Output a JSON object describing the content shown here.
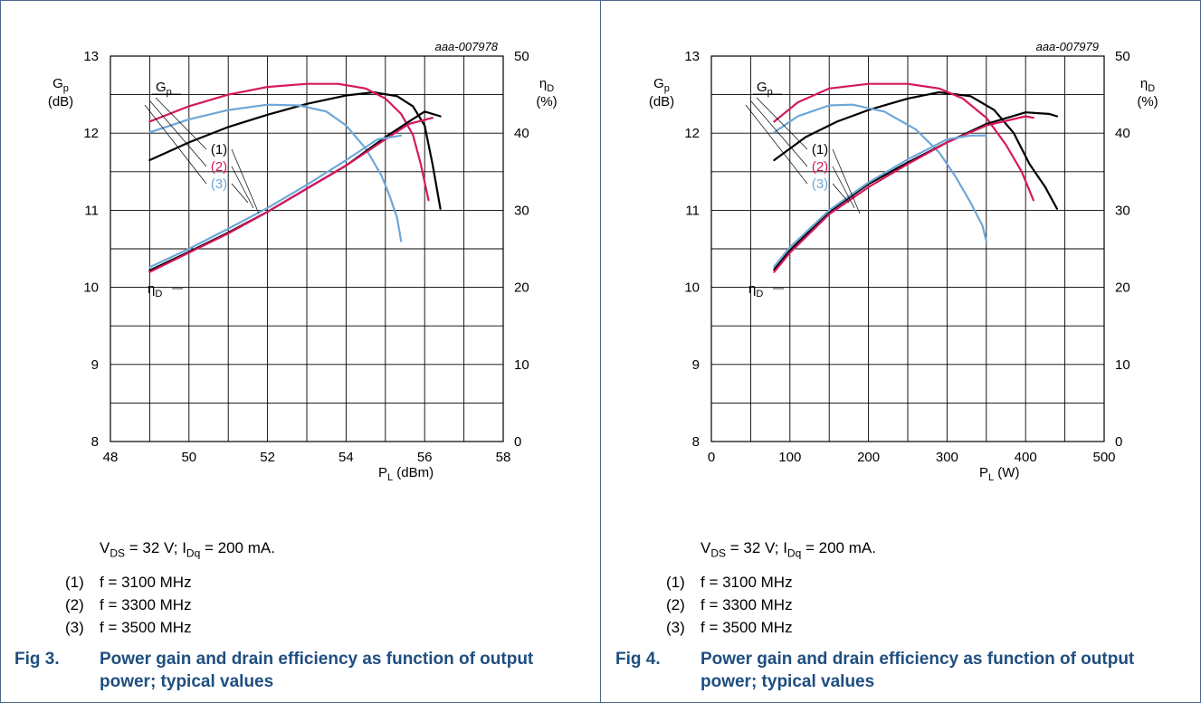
{
  "charts": [
    {
      "id": "aaa-007978",
      "condition": {
        "v_sym": "V",
        "v_sub": "DS",
        "v_val": " = 32 V; ",
        "i_sym": "I",
        "i_sub": "Dq",
        "i_val": " = 200 mA."
      },
      "legend": [
        {
          "num": "(1)",
          "label": "f = 3100 MHz"
        },
        {
          "num": "(2)",
          "label": "f = 3300 MHz"
        },
        {
          "num": "(3)",
          "label": "f = 3500 MHz"
        }
      ],
      "caption": {
        "fig": "Fig 3.",
        "title": "Power gain and drain efficiency as function of output power; typical values"
      }
    },
    {
      "id": "aaa-007979",
      "condition": {
        "v_sym": "V",
        "v_sub": "DS",
        "v_val": " = 32 V; ",
        "i_sym": "I",
        "i_sub": "Dq",
        "i_val": " = 200 mA."
      },
      "legend": [
        {
          "num": "(1)",
          "label": "f = 3100 MHz"
        },
        {
          "num": "(2)",
          "label": "f = 3300 MHz"
        },
        {
          "num": "(3)",
          "label": "f = 3500 MHz"
        }
      ],
      "caption": {
        "fig": "Fig 4.",
        "title": "Power gain and drain efficiency as function of output power; typical values"
      }
    }
  ],
  "colors": {
    "f3100": "#000000",
    "f3300": "#d6175f",
    "f3500": "#6ea7d8",
    "caption": "#1f4e80"
  },
  "chart_data": [
    {
      "type": "line",
      "id_label": "aaa-007978",
      "xlabel_main": "P",
      "xlabel_sub": "L",
      "xlabel_unit": " (dBm)",
      "ylabel_left_main": "G",
      "ylabel_left_sub": "p",
      "ylabel_left_unit": "(dB)",
      "ylabel_right_main": "η",
      "ylabel_right_sub": "D",
      "ylabel_right_unit": "(%)",
      "xlim": [
        48,
        58
      ],
      "ylim_left": [
        8,
        13
      ],
      "ylim_right": [
        0,
        50
      ],
      "xticks": [
        48,
        50,
        52,
        54,
        56,
        58
      ],
      "yticks_left": [
        8,
        9,
        10,
        11,
        12,
        13
      ],
      "yticks_right": [
        0,
        10,
        20,
        30,
        40,
        50
      ],
      "grid": true,
      "curve_labels": {
        "gp": "Gp",
        "eta": "ηD",
        "c1": "(1)",
        "c2": "(2)",
        "c3": "(3)"
      },
      "series": [
        {
          "name": "(1)",
          "quantity": "Gp",
          "axis": "left",
          "color": "#000000",
          "x": [
            49,
            50,
            51,
            52,
            53,
            54,
            54.7,
            55.3,
            55.7,
            56.0,
            56.2,
            56.4
          ],
          "y": [
            11.65,
            11.88,
            12.08,
            12.24,
            12.38,
            12.49,
            12.53,
            12.48,
            12.35,
            12.1,
            11.6,
            11.02
          ]
        },
        {
          "name": "(2)",
          "quantity": "Gp",
          "axis": "left",
          "color": "#d6175f",
          "x": [
            49,
            50,
            51,
            52,
            53,
            53.8,
            54.5,
            55.0,
            55.4,
            55.7,
            55.9,
            56.1
          ],
          "y": [
            12.15,
            12.35,
            12.5,
            12.6,
            12.64,
            12.64,
            12.58,
            12.45,
            12.25,
            11.98,
            11.6,
            11.13
          ]
        },
        {
          "name": "(3)",
          "quantity": "Gp",
          "axis": "left",
          "color": "#6ea7d8",
          "x": [
            49,
            50,
            51,
            52,
            52.8,
            53.5,
            54.0,
            54.5,
            54.9,
            55.1,
            55.3,
            55.4
          ],
          "y": [
            12.01,
            12.18,
            12.3,
            12.37,
            12.36,
            12.28,
            12.1,
            11.8,
            11.45,
            11.2,
            10.9,
            10.6
          ]
        },
        {
          "name": "(1)",
          "quantity": "ηD",
          "axis": "right",
          "color": "#000000",
          "x": [
            49,
            50,
            51,
            52,
            53,
            54,
            55,
            55.6,
            56.0,
            56.4
          ],
          "y": [
            22.2,
            24.6,
            27.1,
            29.8,
            32.8,
            35.8,
            39.5,
            41.5,
            42.8,
            42.2
          ]
        },
        {
          "name": "(2)",
          "quantity": "ηD",
          "axis": "right",
          "color": "#d6175f",
          "x": [
            49,
            50,
            51,
            52,
            53,
            54,
            55,
            55.6,
            56.2
          ],
          "y": [
            22.0,
            24.5,
            27.0,
            29.8,
            32.8,
            35.8,
            39.2,
            41.2,
            42.0
          ]
        },
        {
          "name": "(3)",
          "quantity": "ηD",
          "axis": "right",
          "color": "#6ea7d8",
          "x": [
            49,
            50,
            51,
            52,
            53,
            54,
            54.8,
            55.4
          ],
          "y": [
            22.6,
            25.0,
            27.6,
            30.3,
            33.3,
            36.5,
            39.2,
            39.7
          ]
        }
      ]
    },
    {
      "type": "line",
      "id_label": "aaa-007979",
      "xlabel_main": "P",
      "xlabel_sub": "L",
      "xlabel_unit": " (W)",
      "ylabel_left_main": "G",
      "ylabel_left_sub": "p",
      "ylabel_left_unit": "(dB)",
      "ylabel_right_main": "η",
      "ylabel_right_sub": "D",
      "ylabel_right_unit": "(%)",
      "xlim": [
        0,
        500
      ],
      "ylim_left": [
        8,
        13
      ],
      "ylim_right": [
        0,
        50
      ],
      "xticks": [
        0,
        100,
        200,
        300,
        400,
        500
      ],
      "yticks_left": [
        8,
        9,
        10,
        11,
        12,
        13
      ],
      "yticks_right": [
        0,
        10,
        20,
        30,
        40,
        50
      ],
      "grid": true,
      "curve_labels": {
        "gp": "Gp",
        "eta": "ηD",
        "c1": "(1)",
        "c2": "(2)",
        "c3": "(3)"
      },
      "series": [
        {
          "name": "(1)",
          "quantity": "Gp",
          "axis": "left",
          "color": "#000000",
          "x": [
            80,
            120,
            160,
            200,
            250,
            290,
            330,
            360,
            385,
            405,
            425,
            440
          ],
          "y": [
            11.65,
            11.95,
            12.15,
            12.3,
            12.45,
            12.53,
            12.48,
            12.3,
            12.0,
            11.6,
            11.3,
            11.02
          ]
        },
        {
          "name": "(2)",
          "quantity": "Gp",
          "axis": "left",
          "color": "#d6175f",
          "x": [
            80,
            110,
            150,
            200,
            250,
            290,
            320,
            350,
            375,
            395,
            410
          ],
          "y": [
            12.15,
            12.4,
            12.58,
            12.64,
            12.64,
            12.58,
            12.45,
            12.2,
            11.85,
            11.5,
            11.13
          ]
        },
        {
          "name": "(3)",
          "quantity": "Gp",
          "axis": "left",
          "color": "#6ea7d8",
          "x": [
            80,
            110,
            150,
            180,
            220,
            260,
            290,
            310,
            330,
            345,
            350
          ],
          "y": [
            12.01,
            12.22,
            12.36,
            12.37,
            12.28,
            12.05,
            11.75,
            11.45,
            11.1,
            10.8,
            10.6
          ]
        },
        {
          "name": "(1)",
          "quantity": "ηD",
          "axis": "right",
          "color": "#000000",
          "x": [
            80,
            100,
            150,
            200,
            250,
            300,
            350,
            400,
            430,
            440
          ],
          "y": [
            22.3,
            24.8,
            29.8,
            33.4,
            36.2,
            38.8,
            41.2,
            42.7,
            42.5,
            42.2
          ]
        },
        {
          "name": "(2)",
          "quantity": "ηD",
          "axis": "right",
          "color": "#d6175f",
          "x": [
            80,
            100,
            150,
            200,
            250,
            300,
            350,
            400,
            410
          ],
          "y": [
            22.0,
            24.5,
            29.5,
            33.0,
            36.0,
            38.8,
            41.0,
            42.2,
            42.0
          ]
        },
        {
          "name": "(3)",
          "quantity": "ηD",
          "axis": "right",
          "color": "#6ea7d8",
          "x": [
            80,
            100,
            150,
            200,
            250,
            300,
            330,
            350
          ],
          "y": [
            22.7,
            25.2,
            30.0,
            33.6,
            36.6,
            39.2,
            39.7,
            39.7
          ]
        }
      ]
    }
  ]
}
